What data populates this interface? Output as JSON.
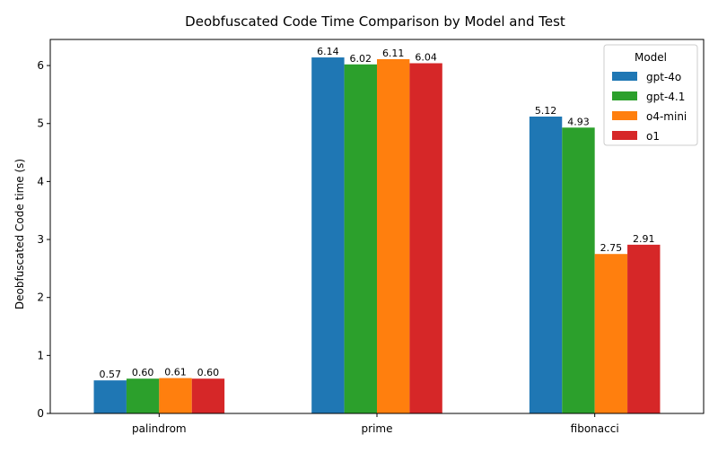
{
  "chart_data": {
    "type": "bar",
    "title": "Deobfuscated Code Time Comparison by Model and Test",
    "xlabel": "",
    "ylabel": "Deobfuscated Code time (s)",
    "ylim": [
      0,
      6.45
    ],
    "yticks": [
      0,
      1,
      2,
      3,
      4,
      5,
      6
    ],
    "categories": [
      "palindrom",
      "prime",
      "fibonacci"
    ],
    "legend_title": "Model",
    "legend_position": "top-right",
    "grid": false,
    "series": [
      {
        "name": "gpt-4o",
        "color": "#1f77b4",
        "values": [
          0.57,
          6.14,
          5.12
        ],
        "labels": [
          "0.57",
          "6.14",
          "5.12"
        ]
      },
      {
        "name": "gpt-4.1",
        "color": "#2ca02c",
        "values": [
          0.6,
          6.02,
          4.93
        ],
        "labels": [
          "0.60",
          "6.02",
          "4.93"
        ]
      },
      {
        "name": "o4-mini",
        "color": "#ff7f0e",
        "values": [
          0.61,
          6.11,
          2.75
        ],
        "labels": [
          "0.61",
          "6.11",
          "2.75"
        ]
      },
      {
        "name": "o1",
        "color": "#d62728",
        "values": [
          0.6,
          6.04,
          2.91
        ],
        "labels": [
          "0.60",
          "6.04",
          "2.91"
        ]
      }
    ]
  }
}
